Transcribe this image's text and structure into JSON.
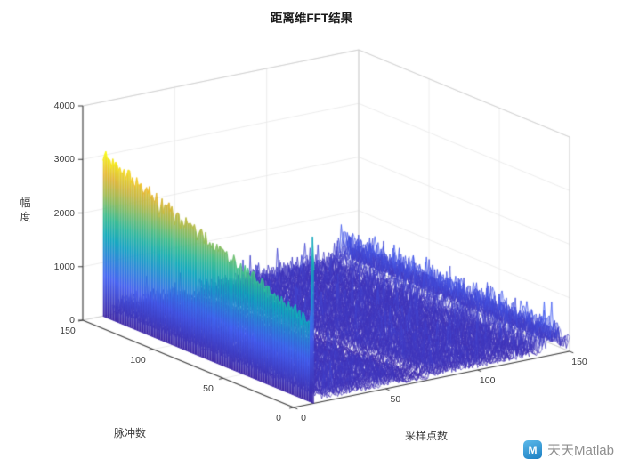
{
  "title": "距离维FFT结果",
  "axes": {
    "x": {
      "label": "采样点数",
      "range": [
        0,
        150
      ],
      "ticks": [
        0,
        50,
        100,
        150
      ]
    },
    "y": {
      "label": "脉冲数",
      "range": [
        0,
        150
      ],
      "ticks": [
        0,
        50,
        100,
        150
      ]
    },
    "z": {
      "label": "幅度",
      "range": [
        0,
        4000
      ],
      "ticks": [
        0,
        1000,
        2000,
        3000,
        4000
      ]
    }
  },
  "watermark": {
    "text": "天天Matlab",
    "icon_letter": "M",
    "icon_color": "#2b9fd9",
    "text_color": "#8f8f8f"
  },
  "colors": {
    "background": "#ffffff",
    "axis": "#3a3a3a",
    "grid": "#e7e7e7",
    "box": "#c9c9c9"
  },
  "chart_data": {
    "type": "heatmap",
    "render_style": "matlab-3d-mesh-surface",
    "title": "距离维FFT结果",
    "xlabel": "采样点数",
    "ylabel": "脉冲数",
    "zlabel": "幅度",
    "xlim": [
      0,
      150
    ],
    "ylim": [
      0,
      150
    ],
    "zlim": [
      0,
      4000
    ],
    "view_azimuth_deg": -37.5,
    "view_elevation_deg": 30,
    "grid_size": {
      "x": 150,
      "y": 150
    },
    "colormap": "parula",
    "colormap_stops": [
      [
        0,
        "#3e26a8"
      ],
      [
        0.25,
        "#4564f9"
      ],
      [
        0.5,
        "#0dadc0"
      ],
      [
        0.625,
        "#3cc190"
      ],
      [
        0.75,
        "#a5be52"
      ],
      [
        0.875,
        "#efb935"
      ],
      [
        1,
        "#f9fb15"
      ]
    ],
    "color_zmax": 3050,
    "features": {
      "target_ridge": {
        "x_center": 11,
        "amplitude_at_pulse_0": 1450,
        "amplitude_at_pulse_150": 3000,
        "top_noise": 120
      },
      "end_spike": {
        "pulse": 1,
        "amplitude": 3100
      },
      "mirror_ridge": {
        "x_center": 141,
        "amplitude": 330
      },
      "dark_band": {
        "x_start": 67,
        "x_slope_per_pulse": -0.08,
        "width": 7,
        "attenuation": 0.35
      },
      "noise_floor": {
        "min": 40,
        "max": 360
      }
    },
    "seed": 7
  }
}
